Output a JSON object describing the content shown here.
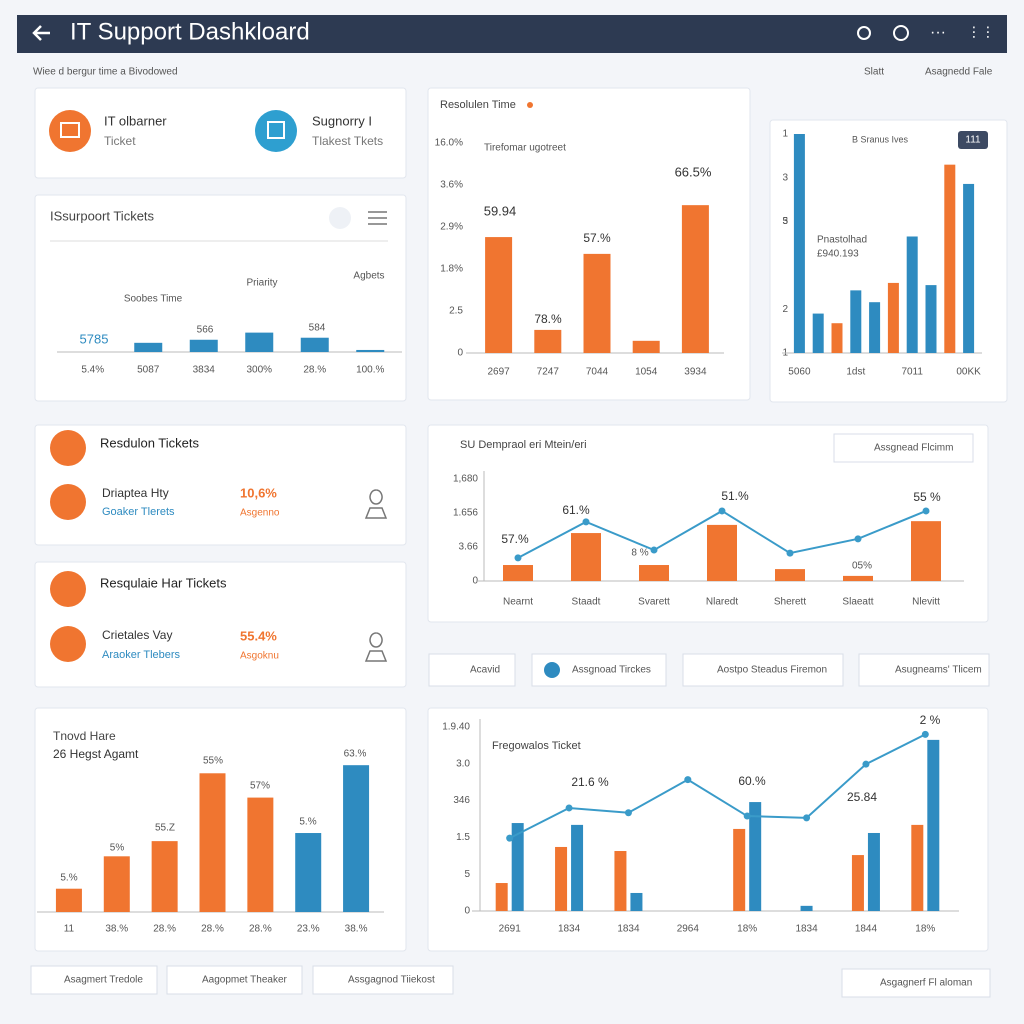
{
  "header": {
    "title": "IT Support Dashkloard"
  },
  "subheader": {
    "text": "Wiee d bergur time a Bivodowed",
    "links": [
      "Slatt",
      "Asagnedd Fale"
    ]
  },
  "info_cards": [
    {
      "title": "IT olbarner",
      "subtitle": "Ticket"
    },
    {
      "title": "Sugnorry I",
      "subtitle": "Tlakest Tkets"
    }
  ],
  "ticket_cards": [
    {
      "heading": "Resdulon Tickets",
      "name": "Driaptea Hty",
      "detail": "Goaker Tlerets",
      "value": "10,6%",
      "note": "Asgenno"
    },
    {
      "heading": "Resqulaie Har Tickets",
      "name": "Crietales Vay",
      "detail": "Araoker Tlebers",
      "value": "55.4%",
      "note": "Asgoknu"
    }
  ],
  "buttons": [
    "Acavid",
    "Assgnoad Tirckes",
    "Aostpo Steadus Firemon",
    "Asugneams' Tlicem"
  ],
  "footer_buttons": [
    "Asagmert Tredole",
    "Aagopmet Theaker",
    "Assgagnod Tiiekost",
    "Asgagnerf Fl aloman"
  ],
  "chart_data": [
    {
      "type": "bar",
      "title": "ISsurpoort Tickets",
      "categories": [
        "5.4%",
        "5087",
        "3834",
        "300%",
        "28.%",
        "100.%"
      ],
      "series": [
        {
          "color": "#2e8bc0",
          "values": [
            null,
            9,
            12,
            19,
            14,
            2
          ]
        }
      ],
      "ylim": [
        0,
        100
      ],
      "annotations": [
        "Soobes Time",
        "Priarity",
        "Agbets",
        "5785",
        "566",
        "584"
      ]
    },
    {
      "type": "bar",
      "title": "Resolulen Time",
      "categories": [
        "2697",
        "7247",
        "7044",
        "1054",
        "3934"
      ],
      "series": [
        {
          "color": "#f07530",
          "values": [
            2.76,
            0.55,
            2.36,
            0.29,
            3.52
          ]
        }
      ],
      "ylim": [
        0,
        5
      ],
      "yticks": [
        0,
        {
          "value": 1,
          "label": "2.5"
        },
        {
          "value": 2,
          "label": "1.8%"
        },
        {
          "value": 3,
          "label": "2.9%"
        },
        {
          "value": 4,
          "label": "3.6%"
        },
        {
          "value": 5,
          "label": "16.0%"
        }
      ],
      "annotations": [
        "Tirefomar ugotreet",
        "59.94",
        "78.%",
        "57.%",
        "66.5%"
      ]
    },
    {
      "type": "bar",
      "categories": [
        "5060",
        null,
        null,
        "1dst",
        null,
        null,
        "7011",
        null,
        null,
        "00KK"
      ],
      "series": [
        {
          "color": "#2e8bc0",
          "values": [
            5.0,
            0.9,
            null,
            1.43,
            1.16,
            null,
            2.66,
            1.55,
            null,
            3.86
          ]
        },
        {
          "color": "#f07530",
          "values": [
            null,
            null,
            0.68,
            null,
            null,
            1.6,
            null,
            null,
            4.3,
            null
          ]
        }
      ],
      "ylim": [
        0,
        5
      ],
      "yticks": [
        {
          "value": 0,
          "label": "1"
        },
        {
          "value": 1,
          "label": "2"
        },
        3,
        {
          "value": 3,
          "label": "5"
        },
        {
          "value": 4,
          "label": "3"
        },
        {
          "value": 5,
          "label": "1"
        }
      ],
      "annotations": [
        "B Sranus Ives",
        "Pnastolhad",
        "£940.193",
        "111"
      ]
    },
    {
      "type": "combo",
      "title": "SU Dempraol eri Mtein/eri",
      "categories": [
        "Nearnt",
        "Staadt",
        "Svarett",
        "Nlaredt",
        "Sherett",
        "Slaeatt",
        "Nlevitt"
      ],
      "series": [
        {
          "type": "bar",
          "color": "#f07530",
          "values": [
            0.47,
            1.41,
            0.47,
            1.65,
            0.35,
            0.15,
            1.76
          ]
        },
        {
          "type": "line",
          "color": "#3a9bc9",
          "values": [
            0.68,
            1.74,
            0.91,
            2.06,
            0.82,
            1.24,
            2.06
          ]
        }
      ],
      "ylim": [
        0,
        3
      ],
      "yticks": [
        0,
        {
          "value": 1,
          "label": "3.66"
        },
        {
          "value": 2,
          "label": "1.656"
        },
        {
          "value": 3,
          "label": "1,680"
        }
      ],
      "annotations": [
        "57.%",
        "61.%",
        "8 %",
        "51.%",
        "05%",
        "55 %"
      ],
      "legend_button": "Assgnead Flcimm"
    },
    {
      "type": "bar",
      "title": "Tnovd Hare",
      "subtitle": "26 Hegst Agamt",
      "categories": [
        "11",
        "38.%",
        "28.%",
        "28.%",
        "28.%",
        "23.%",
        "38.%"
      ],
      "series": [
        {
          "color": "#f07530",
          "values": [
            23,
            55,
            70,
            137,
            113,
            null,
            null
          ]
        },
        {
          "color": "#2e8bc0",
          "values": [
            null,
            null,
            null,
            null,
            null,
            78,
            145
          ]
        }
      ],
      "ylim": [
        0,
        160
      ],
      "annotations": [
        "5.%",
        "5%",
        "55.Z",
        "55%",
        "57%",
        "5.%",
        "63.%"
      ]
    },
    {
      "type": "combo",
      "title": "Fregowalos Ticket",
      "categories": [
        "2691",
        "1834",
        "1834",
        "2964",
        "18%",
        "1834",
        "1844",
        "18%"
      ],
      "series": [
        {
          "type": "bar",
          "color": "#f07530",
          "values": [
            0.76,
            1.74,
            1.63,
            null,
            2.23,
            null,
            1.52,
            2.34
          ]
        },
        {
          "type": "bar",
          "color": "#2e8bc0",
          "values": [
            2.39,
            2.34,
            0.49,
            null,
            2.96,
            0.14,
            2.12,
            4.65
          ]
        },
        {
          "type": "line",
          "color": "#3a9bc9",
          "values": [
            1.98,
            2.8,
            2.67,
            3.57,
            2.58,
            2.53,
            3.99,
            4.8
          ]
        }
      ],
      "ylim": [
        0,
        5
      ],
      "yticks": [
        0,
        {
          "value": 1,
          "label": "5"
        },
        {
          "value": 2,
          "label": "1.5"
        },
        {
          "value": 3,
          "label": "346"
        },
        {
          "value": 4,
          "label": "3.0"
        },
        {
          "value": 5,
          "label": "1.9.40"
        }
      ],
      "annotations": [
        "2 %",
        "21.6 %",
        "60.%",
        "25.84"
      ]
    }
  ]
}
